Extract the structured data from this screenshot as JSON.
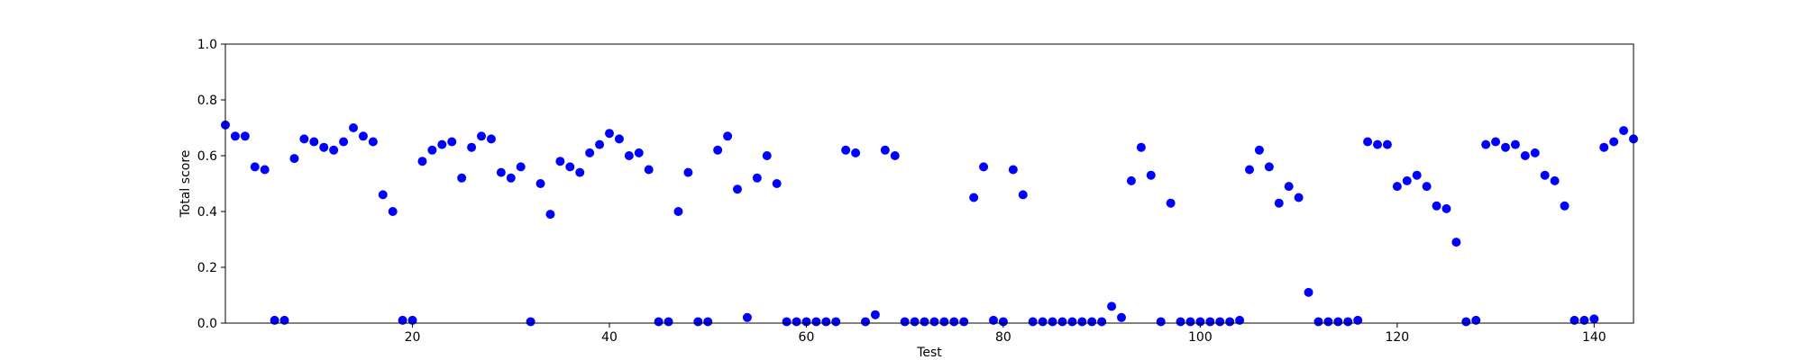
{
  "chart_data": {
    "type": "scatter",
    "title": "",
    "xlabel": "Test",
    "ylabel": "Total score",
    "xlim": [
      1,
      144
    ],
    "ylim": [
      0,
      1.0
    ],
    "x_ticks": [
      20,
      40,
      60,
      80,
      100,
      120,
      140
    ],
    "x_tick_labels": [
      "20",
      "40",
      "60",
      "80",
      "100",
      "120",
      "140"
    ],
    "y_ticks": [
      0,
      0.2,
      0.4,
      0.6,
      0.8,
      1.0
    ],
    "y_tick_labels": [
      "0.0",
      "0.2",
      "0.4",
      "0.6",
      "0.8",
      "1.0"
    ],
    "grid": false,
    "marker_color": "#0000ff",
    "x": [
      1,
      2,
      3,
      4,
      5,
      6,
      7,
      8,
      9,
      10,
      11,
      12,
      13,
      14,
      15,
      16,
      17,
      18,
      19,
      20,
      21,
      22,
      23,
      24,
      25,
      26,
      27,
      28,
      29,
      30,
      31,
      32,
      33,
      34,
      35,
      36,
      37,
      38,
      39,
      40,
      41,
      42,
      43,
      44,
      45,
      46,
      47,
      48,
      49,
      50,
      51,
      52,
      53,
      54,
      55,
      56,
      57,
      58,
      59,
      60,
      61,
      62,
      63,
      64,
      65,
      66,
      67,
      68,
      69,
      70,
      71,
      72,
      73,
      74,
      75,
      76,
      77,
      78,
      79,
      80,
      81,
      82,
      83,
      84,
      85,
      86,
      87,
      88,
      89,
      90,
      91,
      92,
      93,
      94,
      95,
      96,
      97,
      98,
      99,
      100,
      101,
      102,
      103,
      104,
      105,
      106,
      107,
      108,
      109,
      110,
      111,
      112,
      113,
      114,
      115,
      116,
      117,
      118,
      119,
      120,
      121,
      122,
      123,
      124,
      125,
      126,
      127,
      128,
      129,
      130,
      131,
      132,
      133,
      134,
      135,
      136,
      137,
      138,
      139,
      140,
      141,
      142,
      143,
      144
    ],
    "y": [
      0.71,
      0.67,
      0.67,
      0.56,
      0.55,
      0.01,
      0.01,
      0.59,
      0.66,
      0.65,
      0.63,
      0.62,
      0.65,
      0.7,
      0.67,
      0.65,
      0.46,
      0.4,
      0.01,
      0.01,
      0.58,
      0.62,
      0.64,
      0.65,
      0.52,
      0.63,
      0.67,
      0.66,
      0.54,
      0.52,
      0.56,
      0.005,
      0.5,
      0.39,
      0.58,
      0.56,
      0.54,
      0.61,
      0.64,
      0.68,
      0.66,
      0.6,
      0.61,
      0.55,
      0.005,
      0.005,
      0.4,
      0.54,
      0.005,
      0.005,
      0.62,
      0.67,
      0.48,
      0.02,
      0.52,
      0.6,
      0.5,
      0.005,
      0.005,
      0.005,
      0.005,
      0.005,
      0.005,
      0.62,
      0.61,
      0.005,
      0.03,
      0.62,
      0.6,
      0.005,
      0.005,
      0.005,
      0.005,
      0.005,
      0.005,
      0.005,
      0.45,
      0.56,
      0.01,
      0.005,
      0.55,
      0.46,
      0.005,
      0.005,
      0.005,
      0.005,
      0.005,
      0.005,
      0.005,
      0.005,
      0.06,
      0.02,
      0.51,
      0.63,
      0.53,
      0.005,
      0.43,
      0.005,
      0.005,
      0.005,
      0.005,
      0.005,
      0.005,
      0.01,
      0.55,
      0.62,
      0.56,
      0.43,
      0.49,
      0.45,
      0.11,
      0.005,
      0.005,
      0.005,
      0.005,
      0.01,
      0.65,
      0.64,
      0.64,
      0.49,
      0.51,
      0.53,
      0.49,
      0.42,
      0.41,
      0.29,
      0.005,
      0.01,
      0.64,
      0.65,
      0.63,
      0.64,
      0.6,
      0.61,
      0.53,
      0.51,
      0.42,
      0.01,
      0.01,
      0.015,
      0.63,
      0.65,
      0.69,
      0.66
    ]
  }
}
